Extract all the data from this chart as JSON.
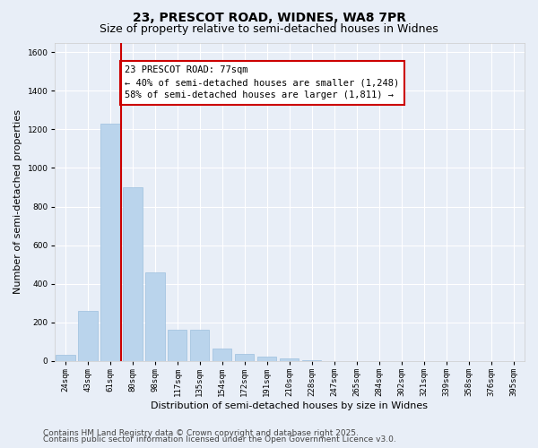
{
  "title": "23, PRESCOT ROAD, WIDNES, WA8 7PR",
  "subtitle": "Size of property relative to semi-detached houses in Widnes",
  "xlabel": "Distribution of semi-detached houses by size in Widnes",
  "ylabel": "Number of semi-detached properties",
  "categories": [
    "24sqm",
    "43sqm",
    "61sqm",
    "80sqm",
    "98sqm",
    "117sqm",
    "135sqm",
    "154sqm",
    "172sqm",
    "191sqm",
    "210sqm",
    "228sqm",
    "247sqm",
    "265sqm",
    "284sqm",
    "302sqm",
    "321sqm",
    "339sqm",
    "358sqm",
    "376sqm",
    "395sqm"
  ],
  "values": [
    30,
    260,
    1230,
    900,
    460,
    160,
    160,
    65,
    35,
    20,
    15,
    5,
    0,
    0,
    0,
    0,
    0,
    0,
    0,
    0,
    0
  ],
  "bar_color": "#bad4ec",
  "bar_edge_color": "#9dbfde",
  "vline_color": "#cc0000",
  "vline_x": 2.5,
  "annotation_text": "23 PRESCOT ROAD: 77sqm\n← 40% of semi-detached houses are smaller (1,248)\n58% of semi-detached houses are larger (1,811) →",
  "annotation_box_facecolor": "#ffffff",
  "annotation_box_edgecolor": "#cc0000",
  "ylim": [
    0,
    1650
  ],
  "yticks": [
    0,
    200,
    400,
    600,
    800,
    1000,
    1200,
    1400,
    1600
  ],
  "footer1": "Contains HM Land Registry data © Crown copyright and database right 2025.",
  "footer2": "Contains public sector information licensed under the Open Government Licence v3.0.",
  "bg_color": "#e8eef7",
  "title_fontsize": 10,
  "subtitle_fontsize": 9,
  "axis_label_fontsize": 8,
  "tick_fontsize": 6.5,
  "footer_fontsize": 6.5,
  "annotation_fontsize": 7.5
}
